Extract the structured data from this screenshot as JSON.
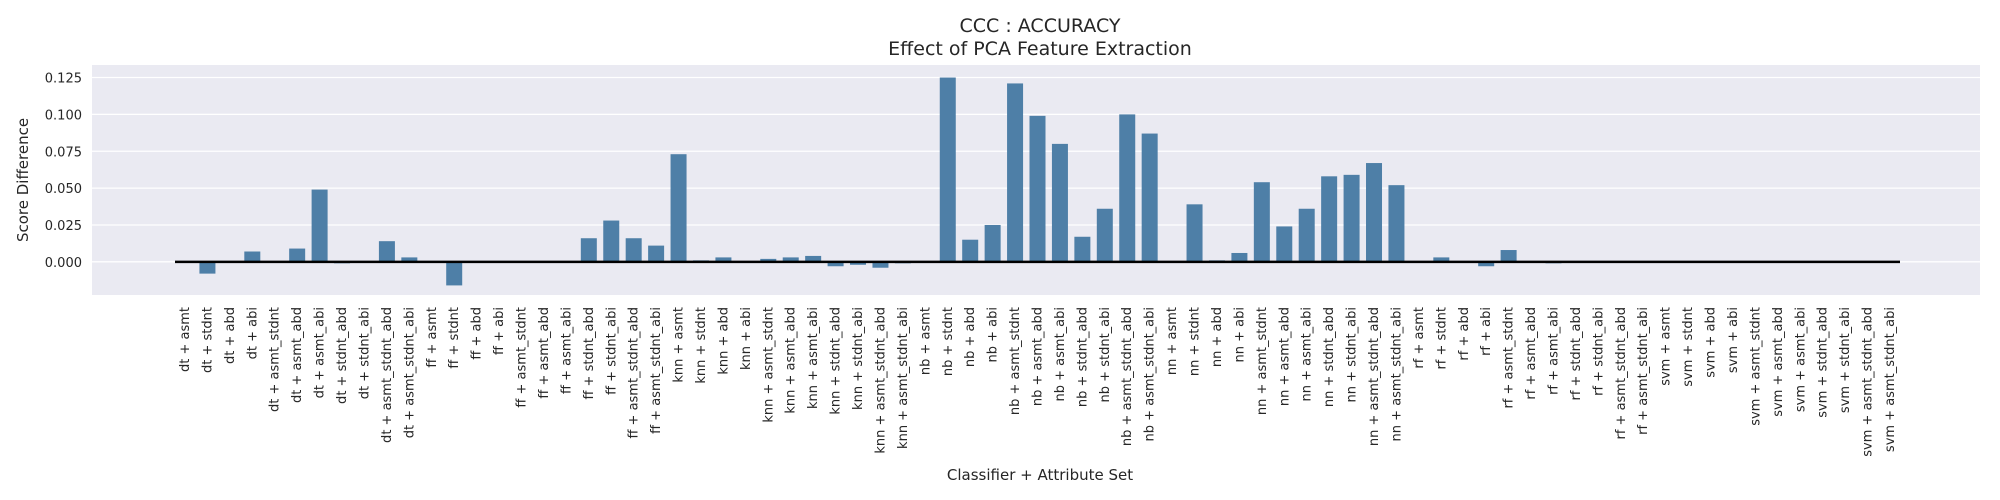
{
  "chart_data": {
    "type": "bar",
    "title": "CCC : ACCURACY",
    "subtitle": "Effect of PCA Feature Extraction",
    "xlabel": "Classifier + Attribute Set",
    "ylabel": "Score Difference",
    "ylim": [
      -0.0225,
      0.1335
    ],
    "yticks": [
      "0.000",
      "0.025",
      "0.050",
      "0.075",
      "0.100",
      "0.125"
    ],
    "grid": true,
    "bar_color": "#4e7fa7",
    "background_color": "#eaeaf2",
    "baseline_color": "#000000",
    "categories": [
      "dt + asmt",
      "dt + stdnt",
      "dt + abd",
      "dt + abi",
      "dt + asmt_stdnt",
      "dt + asmt_abd",
      "dt + asmt_abi",
      "dt + stdnt_abd",
      "dt + stdnt_abi",
      "dt + asmt_stdnt_abd",
      "dt + asmt_stdnt_abi",
      "ff + asmt",
      "ff + stdnt",
      "ff + abd",
      "ff + abi",
      "ff + asmt_stdnt",
      "ff + asmt_abd",
      "ff + asmt_abi",
      "ff + stdnt_abd",
      "ff + stdnt_abi",
      "ff + asmt_stdnt_abd",
      "ff + asmt_stdnt_abi",
      "knn + asmt",
      "knn + stdnt",
      "knn + abd",
      "knn + abi",
      "knn + asmt_stdnt",
      "knn + asmt_abd",
      "knn + asmt_abi",
      "knn + stdnt_abd",
      "knn + stdnt_abi",
      "knn + asmt_stdnt_abd",
      "knn + asmt_stdnt_abi",
      "nb + asmt",
      "nb + stdnt",
      "nb + abd",
      "nb + abi",
      "nb + asmt_stdnt",
      "nb + asmt_abd",
      "nb + asmt_abi",
      "nb + stdnt_abd",
      "nb + stdnt_abi",
      "nb + asmt_stdnt_abd",
      "nb + asmt_stdnt_abi",
      "nn + asmt",
      "nn + stdnt",
      "nn + abd",
      "nn + abi",
      "nn + asmt_stdnt",
      "nn + asmt_abd",
      "nn + asmt_abi",
      "nn + stdnt_abd",
      "nn + stdnt_abi",
      "nn + asmt_stdnt_abd",
      "nn + asmt_stdnt_abi",
      "rf + asmt",
      "rf + stdnt",
      "rf + abd",
      "rf + abi",
      "rf + asmt_stdnt",
      "rf + asmt_abd",
      "rf + asmt_abi",
      "rf + stdnt_abd",
      "rf + stdnt_abi",
      "rf + asmt_stdnt_abd",
      "rf + asmt_stdnt_abi",
      "svm + asmt",
      "svm + stdnt",
      "svm + abd",
      "svm + abi",
      "svm + asmt_stdnt",
      "svm + asmt_abd",
      "svm + asmt_abi",
      "svm + stdnt_abd",
      "svm + stdnt_abi",
      "svm + asmt_stdnt_abd",
      "svm + asmt_stdnt_abi"
    ],
    "values": [
      0.0,
      -0.008,
      0.0,
      0.007,
      0.0,
      0.009,
      0.049,
      -0.001,
      0.0,
      0.014,
      0.003,
      0.0,
      -0.016,
      0.0,
      0.0,
      0.0,
      0.0,
      0.0,
      0.016,
      0.028,
      0.016,
      0.011,
      0.073,
      0.001,
      0.003,
      0.0,
      0.002,
      0.003,
      0.004,
      -0.003,
      -0.002,
      -0.004,
      -0.001,
      0.0,
      0.125,
      0.015,
      0.025,
      0.121,
      0.099,
      0.08,
      0.017,
      0.036,
      0.1,
      0.087,
      0.0,
      0.039,
      0.001,
      0.006,
      0.054,
      0.024,
      0.036,
      0.058,
      0.059,
      0.067,
      0.052,
      0.0,
      0.003,
      0.0,
      -0.003,
      0.008,
      0.0,
      -0.001,
      0.0,
      0.0,
      0.0,
      0.0,
      0.0,
      0.0,
      0.0,
      0.0,
      0.0,
      0.0,
      0.0,
      0.0,
      0.0,
      0.0,
      0.0
    ]
  }
}
